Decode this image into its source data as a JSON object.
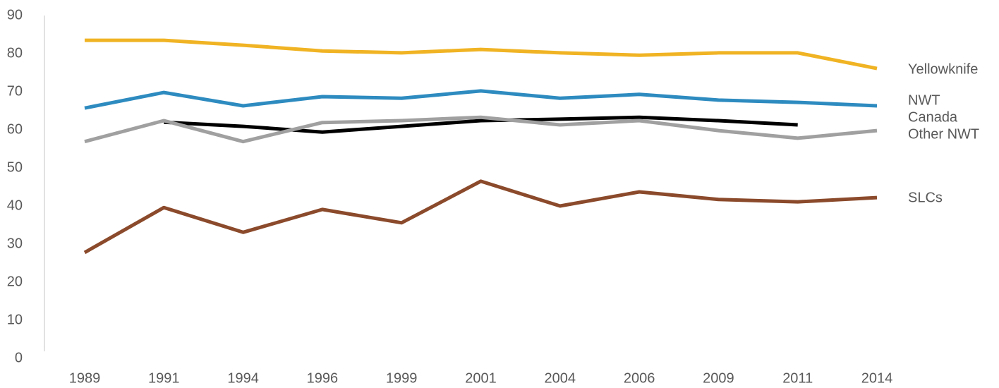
{
  "chart_data": {
    "type": "line",
    "categories": [
      "1989",
      "1991",
      "1994",
      "1996",
      "1999",
      "2001",
      "2004",
      "2006",
      "2009",
      "2011",
      "2014"
    ],
    "series": [
      {
        "name": "Yellowknife",
        "color": "#f0b323",
        "values": [
          83.5,
          83.5,
          82.2,
          80.7,
          80.2,
          81.1,
          80.2,
          79.6,
          80.2,
          80.2,
          76.1
        ]
      },
      {
        "name": "NWT",
        "color": "#2e8bc0",
        "values": [
          65.7,
          69.8,
          66.3,
          68.7,
          68.3,
          70.2,
          68.3,
          69.3,
          67.8,
          67.2,
          66.3
        ]
      },
      {
        "name": "Canada",
        "color": "#000000",
        "values": [
          null,
          62.0,
          60.9,
          59.4,
          60.9,
          62.4,
          62.8,
          63.3,
          62.4,
          61.3,
          null
        ]
      },
      {
        "name": "Other NWT",
        "color": "#a0a0a0",
        "values": [
          56.9,
          62.4,
          56.9,
          61.9,
          62.4,
          63.3,
          61.3,
          62.4,
          59.8,
          57.8,
          59.8
        ]
      },
      {
        "name": "SLCs",
        "color": "#8b4a2b",
        "values": [
          27.8,
          39.6,
          33.1,
          39.1,
          35.6,
          46.5,
          40.0,
          43.7,
          41.7,
          41.1,
          42.2
        ]
      }
    ],
    "ylim": [
      0,
      90
    ],
    "yticks": [
      0,
      10,
      20,
      30,
      40,
      50,
      60,
      70,
      80,
      90
    ],
    "grid": false
  }
}
